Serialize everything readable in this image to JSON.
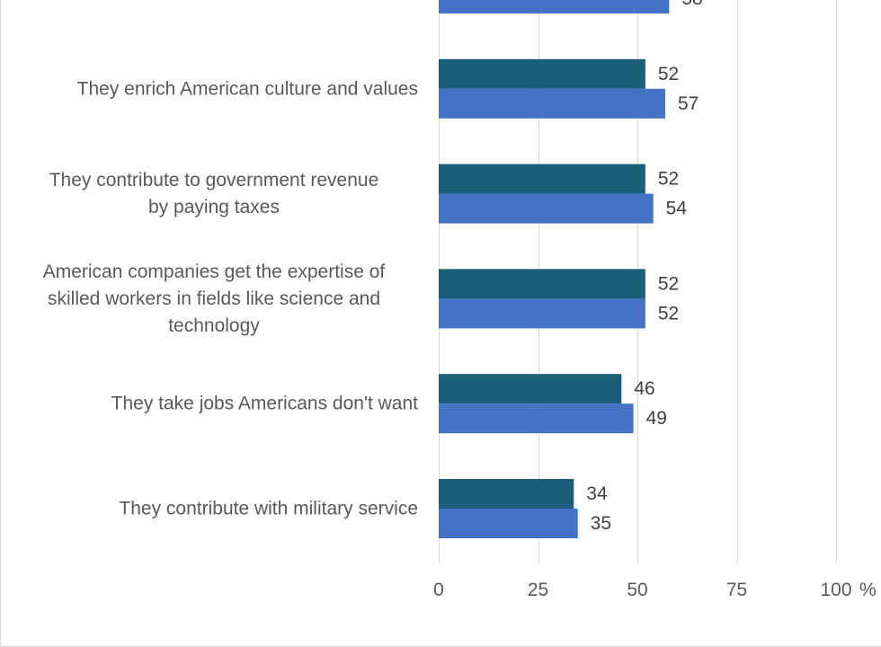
{
  "chart_data": {
    "type": "bar",
    "orientation": "horizontal",
    "categories": [
      "",
      "They enrich American culture and values",
      "They contribute to government revenue by paying taxes",
      "American companies get the expertise of skilled workers in fields like science and technology",
      "They take jobs Americans don't want",
      "They contribute with military service"
    ],
    "category_lines": [
      [],
      [
        "They enrich American culture and values"
      ],
      [
        "They contribute to government revenue",
        "by paying taxes"
      ],
      [
        "American companies get the expertise of",
        "skilled workers in fields like science and",
        "technology"
      ],
      [
        "They take jobs Americans don't want"
      ],
      [
        "They contribute with military service"
      ]
    ],
    "series": [
      {
        "color": "#1a5e7a",
        "values": [
          null,
          52,
          52,
          52,
          46,
          34
        ]
      },
      {
        "color": "#4472c4",
        "values": [
          58,
          57,
          54,
          52,
          49,
          35
        ]
      }
    ],
    "x_ticks": [
      0,
      25,
      50,
      75,
      100
    ],
    "x_tick_labels": [
      "0",
      "25",
      "50",
      "75",
      "100"
    ],
    "x_unit": "%",
    "xlim": [
      0,
      100
    ],
    "grid": true,
    "legend": "none",
    "title": "",
    "xlabel": "",
    "ylabel": ""
  }
}
